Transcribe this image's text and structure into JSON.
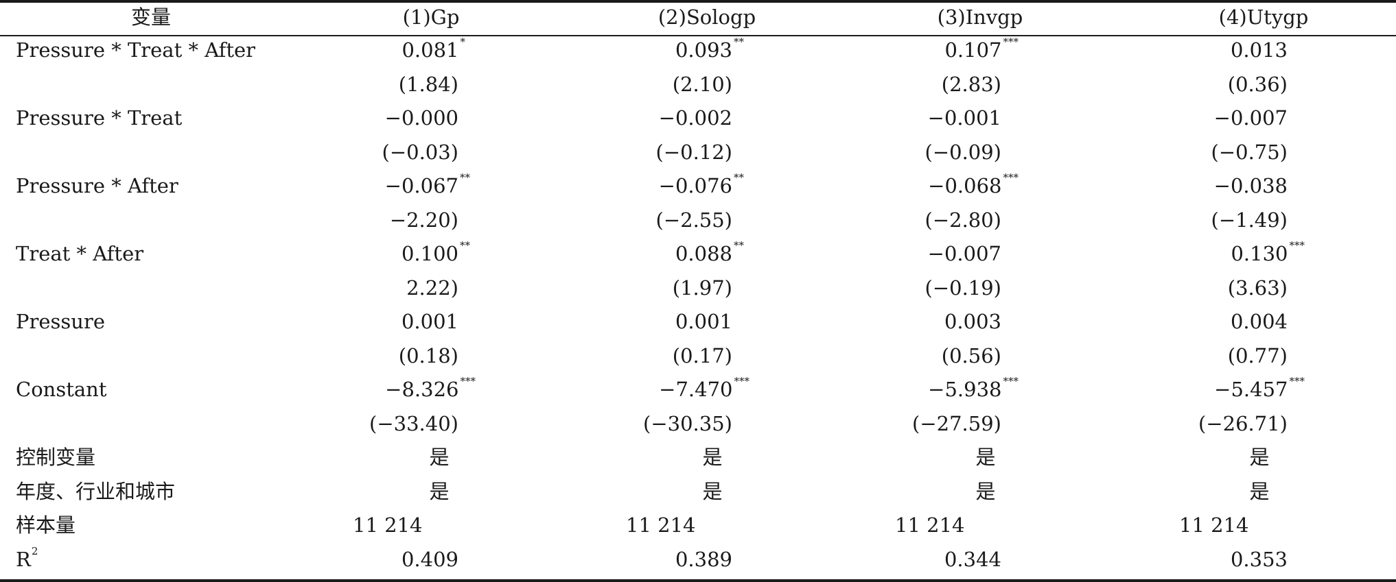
{
  "table": {
    "headers": [
      "变量",
      "(1)Gp",
      "(2)Sologp",
      "(3)Invgp",
      "(4)Utygp"
    ],
    "rows": [
      {
        "label": "Pressure * Treat * After",
        "values": [
          {
            "v": "0.081",
            "s": "*"
          },
          {
            "v": "0.093",
            "s": "**"
          },
          {
            "v": "0.107",
            "s": "***"
          },
          {
            "v": "0.013",
            "s": ""
          }
        ]
      },
      {
        "label": "",
        "values": [
          {
            "v": "(1.84)",
            "s": ""
          },
          {
            "v": "(2.10)",
            "s": ""
          },
          {
            "v": "(2.83)",
            "s": ""
          },
          {
            "v": "(0.36)",
            "s": ""
          }
        ]
      },
      {
        "label": "Pressure * Treat",
        "values": [
          {
            "v": "−0.000",
            "s": ""
          },
          {
            "v": "−0.002",
            "s": ""
          },
          {
            "v": "−0.001",
            "s": ""
          },
          {
            "v": "−0.007",
            "s": ""
          }
        ]
      },
      {
        "label": "",
        "values": [
          {
            "v": "(−0.03)",
            "s": ""
          },
          {
            "v": "(−0.12)",
            "s": ""
          },
          {
            "v": "(−0.09)",
            "s": ""
          },
          {
            "v": "(−0.75)",
            "s": ""
          }
        ]
      },
      {
        "label": "Pressure * After",
        "values": [
          {
            "v": "−0.067",
            "s": "**"
          },
          {
            "v": "−0.076",
            "s": "**"
          },
          {
            "v": "−0.068",
            "s": "***"
          },
          {
            "v": "−0.038",
            "s": ""
          }
        ]
      },
      {
        "label": "",
        "values": [
          {
            "v": "−2.20)",
            "s": ""
          },
          {
            "v": "(−2.55)",
            "s": ""
          },
          {
            "v": "(−2.80)",
            "s": ""
          },
          {
            "v": "(−1.49)",
            "s": ""
          }
        ]
      },
      {
        "label": "Treat * After",
        "values": [
          {
            "v": "0.100",
            "s": "**"
          },
          {
            "v": "0.088",
            "s": "**"
          },
          {
            "v": "−0.007",
            "s": ""
          },
          {
            "v": "0.130",
            "s": "***"
          }
        ]
      },
      {
        "label": "",
        "values": [
          {
            "v": "2.22)",
            "s": ""
          },
          {
            "v": "(1.97)",
            "s": ""
          },
          {
            "v": "(−0.19)",
            "s": ""
          },
          {
            "v": "(3.63)",
            "s": ""
          }
        ]
      },
      {
        "label": "Pressure",
        "values": [
          {
            "v": "0.001",
            "s": ""
          },
          {
            "v": "0.001",
            "s": ""
          },
          {
            "v": "0.003",
            "s": ""
          },
          {
            "v": "0.004",
            "s": ""
          }
        ]
      },
      {
        "label": "",
        "values": [
          {
            "v": "(0.18)",
            "s": ""
          },
          {
            "v": "(0.17)",
            "s": ""
          },
          {
            "v": "(0.56)",
            "s": ""
          },
          {
            "v": "(0.77)",
            "s": ""
          }
        ]
      },
      {
        "label": "Constant",
        "values": [
          {
            "v": "−8.326",
            "s": "***"
          },
          {
            "v": "−7.470",
            "s": "***"
          },
          {
            "v": "−5.938",
            "s": "***"
          },
          {
            "v": "−5.457",
            "s": "***"
          }
        ]
      },
      {
        "label": "",
        "values": [
          {
            "v": "(−33.40)",
            "s": ""
          },
          {
            "v": "(−30.35)",
            "s": ""
          },
          {
            "v": "(−27.59)",
            "s": ""
          },
          {
            "v": "(−26.71)",
            "s": ""
          }
        ]
      }
    ],
    "yes_rows": [
      {
        "label": "控制变量",
        "values": [
          "是",
          "是",
          "是",
          "是"
        ]
      },
      {
        "label": "年度、行业和城市",
        "values": [
          "是",
          "是",
          "是",
          "是"
        ]
      }
    ],
    "n_row": {
      "label": "样本量",
      "values": [
        "11 214",
        "11 214",
        "11 214",
        "11 214"
      ]
    },
    "r2_row": {
      "label": "R",
      "label_sup": "2",
      "values": [
        "0.409",
        "0.389",
        "0.344",
        "0.353"
      ]
    }
  }
}
